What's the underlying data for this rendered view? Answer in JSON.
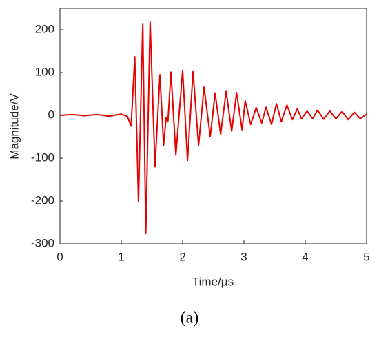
{
  "chart_data": {
    "type": "line",
    "xlabel": "Time/μs",
    "ylabel": "Magnitude/V",
    "caption": "(a)",
    "x": [
      0,
      0.2,
      0.4,
      0.6,
      0.8,
      1.0,
      1.1,
      1.16,
      1.22,
      1.28,
      1.35,
      1.4,
      1.47,
      1.55,
      1.63,
      1.69,
      1.73,
      1.76,
      1.81,
      1.89,
      2.0,
      2.08,
      2.17,
      2.26,
      2.35,
      2.45,
      2.53,
      2.62,
      2.71,
      2.8,
      2.88,
      2.97,
      3.02,
      3.11,
      3.2,
      3.29,
      3.36,
      3.45,
      3.53,
      3.61,
      3.7,
      3.79,
      3.87,
      3.94,
      4.03,
      4.12,
      4.2,
      4.3,
      4.4,
      4.5,
      4.6,
      4.7,
      4.8,
      4.9,
      5.0
    ],
    "series": [
      {
        "name": null,
        "color": "#e60000",
        "values": [
          0,
          2,
          -1,
          2,
          -2,
          3,
          -3,
          -25,
          137,
          -201,
          213,
          -276,
          218,
          -120,
          95,
          -70,
          -5,
          -15,
          101,
          -93,
          105,
          -105,
          102,
          -70,
          66,
          -50,
          52,
          -44,
          56,
          -37,
          53,
          -34,
          34,
          -21,
          18,
          -18,
          19,
          -21,
          27,
          -15,
          24,
          -10,
          15,
          -8,
          10,
          -8,
          12,
          -9,
          10,
          -8,
          9,
          -10,
          7,
          -8,
          3
        ]
      }
    ],
    "xlim": [
      0,
      5
    ],
    "xticks": [
      0,
      1,
      2,
      3,
      4,
      5
    ],
    "ylim": [
      -300,
      250
    ],
    "yticks": [
      -300,
      -200,
      -100,
      0,
      100,
      200
    ],
    "grid": false
  }
}
